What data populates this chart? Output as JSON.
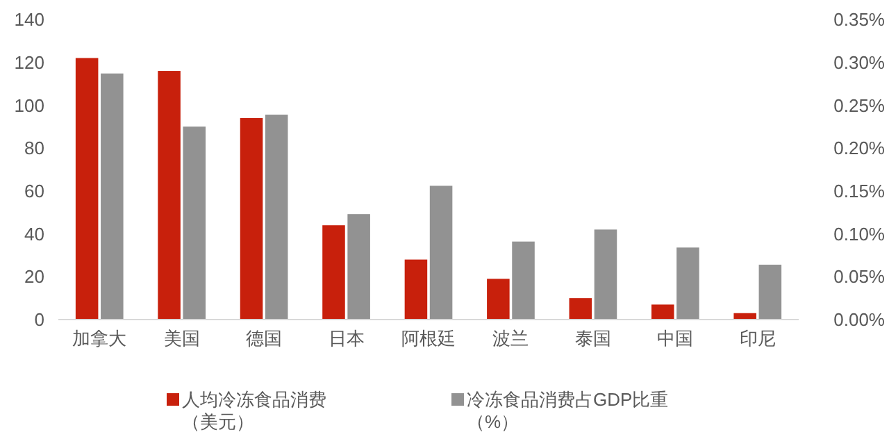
{
  "chart_data": {
    "type": "bar",
    "categories": [
      "加拿大",
      "美国",
      "德国",
      "日本",
      "阿根廷",
      "波兰",
      "泰国",
      "中国",
      "印尼"
    ],
    "series": [
      {
        "name": "人均冷冻食品消费（美元）",
        "color": "#c8200c",
        "values": [
          122,
          116,
          94,
          44,
          28,
          19,
          10,
          7,
          3
        ]
      },
      {
        "name": "冷冻食品消费占GDP比重（%）",
        "color": "#929292",
        "axis": "y2",
        "values": [
          0.287,
          0.225,
          0.239,
          0.123,
          0.156,
          0.091,
          0.105,
          0.084,
          0.064
        ]
      }
    ],
    "ylim": [
      0,
      140
    ],
    "yticks": [
      0,
      20,
      40,
      60,
      80,
      100,
      120,
      140
    ],
    "y2lim": [
      0,
      0.35
    ],
    "y2ticks": [
      {
        "value": 0,
        "label": "0.00%"
      },
      {
        "value": 0.05,
        "label": "0.05%"
      },
      {
        "value": 0.1,
        "label": "0.10%"
      },
      {
        "value": 0.15,
        "label": "0.15%"
      },
      {
        "value": 0.2,
        "label": "0.20%"
      },
      {
        "value": 0.25,
        "label": "0.25%"
      },
      {
        "value": 0.3,
        "label": "0.30%"
      },
      {
        "value": 0.35,
        "label": "0.35%"
      }
    ],
    "grid": false,
    "legend": "bottom"
  }
}
